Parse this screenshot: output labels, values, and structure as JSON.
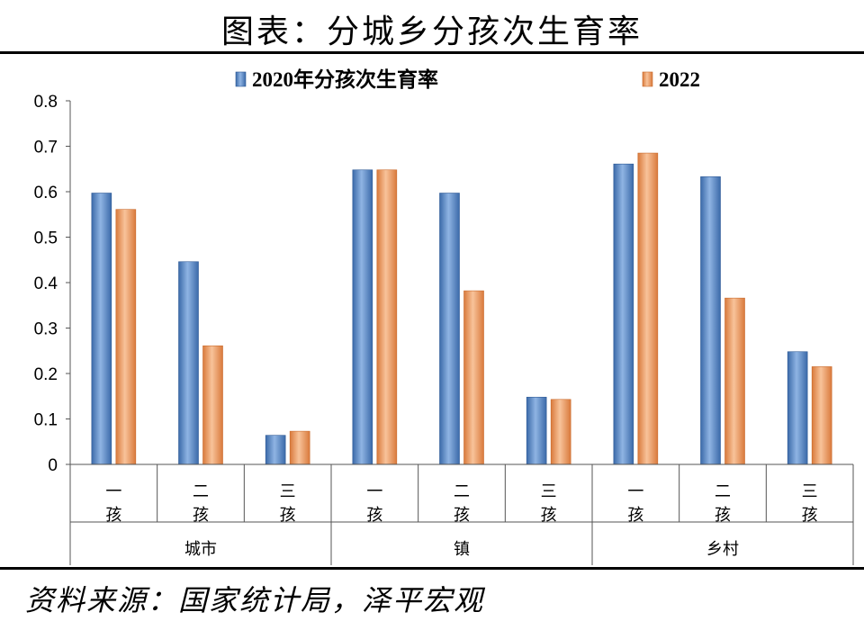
{
  "title": "图表：分城乡分孩次生育率",
  "source": "资料来源：国家统计局，泽平宏观",
  "chart_data": {
    "type": "bar",
    "ylim": [
      0,
      0.8
    ],
    "yticks": [
      "0",
      "0.1",
      "0.2",
      "0.3",
      "0.4",
      "0.5",
      "0.6",
      "0.7",
      "0.8"
    ],
    "legend_position": "top",
    "grid": false,
    "groups": [
      {
        "label": "城市",
        "categories": [
          "一孩",
          "二孩",
          "三孩"
        ]
      },
      {
        "label": "镇",
        "categories": [
          "一孩",
          "二孩",
          "三孩"
        ]
      },
      {
        "label": "乡村",
        "categories": [
          "一孩",
          "二孩",
          "三孩"
        ]
      }
    ],
    "series": [
      {
        "name": "2020年分孩次生育率",
        "color": "#5b8ac6",
        "values": [
          0.597,
          0.446,
          0.064,
          0.648,
          0.597,
          0.148,
          0.661,
          0.633,
          0.248
        ]
      },
      {
        "name": "2022",
        "color": "#f0a06a",
        "values": [
          0.561,
          0.261,
          0.073,
          0.648,
          0.382,
          0.143,
          0.685,
          0.366,
          0.215
        ]
      }
    ]
  }
}
